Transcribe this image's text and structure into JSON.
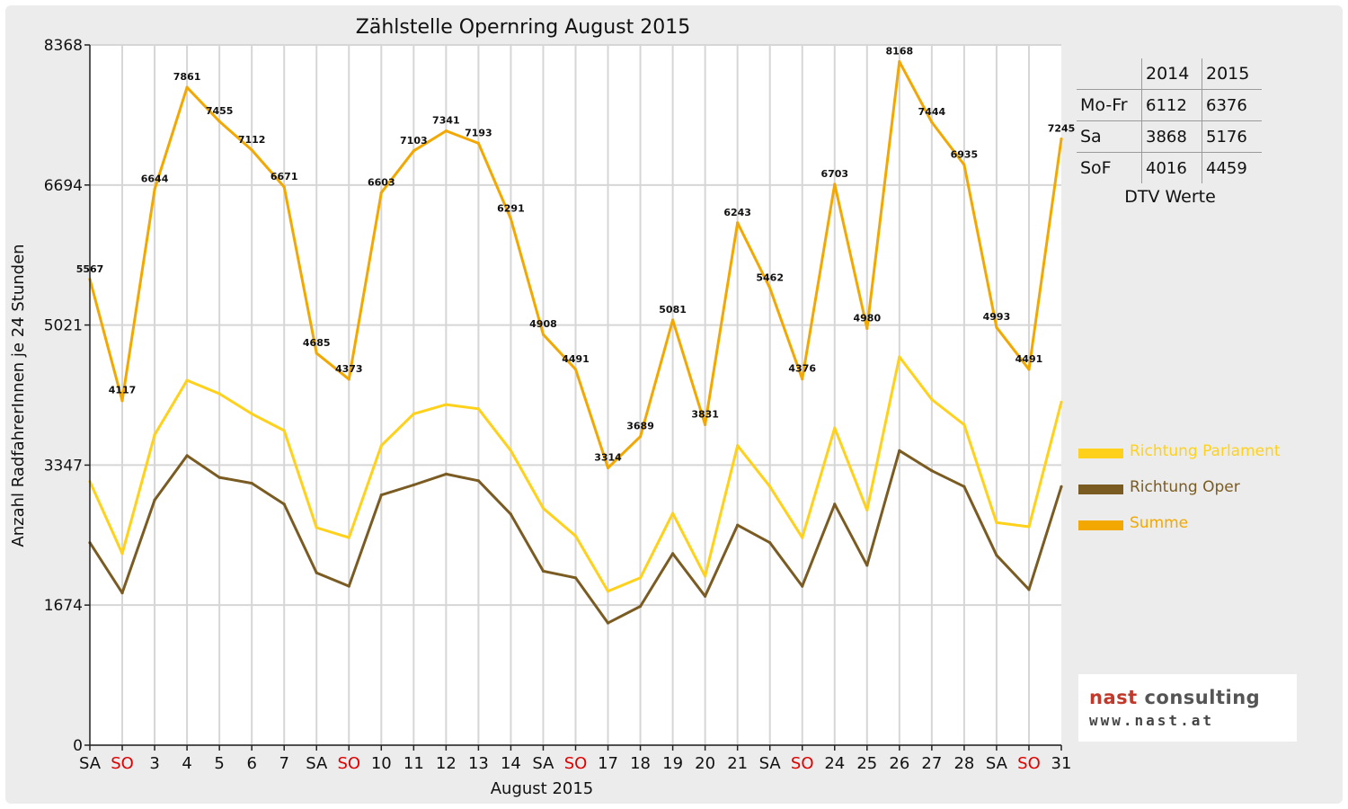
{
  "chart_data": {
    "type": "line",
    "title": "Zählstelle Opernring August 2015",
    "xlabel": "August 2015",
    "ylabel": "Anzahl RadfahrerInnen je 24 Stunden",
    "ylim": [
      0,
      8368
    ],
    "yticks": [
      "0",
      "1674",
      "3347",
      "5021",
      "6694",
      "8368"
    ],
    "grid": true,
    "legend_position": "right",
    "categories": [
      "SA",
      "SO",
      "3",
      "4",
      "5",
      "6",
      "7",
      "SA",
      "SO",
      "10",
      "11",
      "12",
      "13",
      "14",
      "SA",
      "SO",
      "17",
      "18",
      "19",
      "20",
      "21",
      "SA",
      "SO",
      "24",
      "25",
      "26",
      "27",
      "28",
      "SA",
      "SO",
      "31"
    ],
    "weekend_label_color": "#e00000",
    "series": [
      {
        "name": "Richtung Parlament",
        "color": "#ffd11a",
        "values": [
          3150,
          2290,
          3710,
          4360,
          4200,
          3960,
          3760,
          2600,
          2480,
          3580,
          3960,
          4070,
          4020,
          3520,
          2830,
          2500,
          1840,
          2000,
          2770,
          2020,
          3580,
          3090,
          2480,
          3790,
          2810,
          4640,
          4130,
          3830,
          2660,
          2610,
          4100
        ]
      },
      {
        "name": "Richtung Oper",
        "color": "#7a5c23",
        "values": [
          2420,
          1820,
          2930,
          3460,
          3200,
          3130,
          2880,
          2060,
          1900,
          2990,
          3110,
          3240,
          3160,
          2760,
          2080,
          2000,
          1460,
          1660,
          2290,
          1780,
          2630,
          2420,
          1900,
          2880,
          2150,
          3520,
          3280,
          3090,
          2270,
          1860,
          3090
        ]
      },
      {
        "name": "Summe",
        "color": "#f2a800",
        "values": [
          5567,
          4117,
          6644,
          7861,
          7455,
          7112,
          6671,
          4685,
          4373,
          6603,
          7103,
          7341,
          7193,
          6291,
          4908,
          4491,
          3314,
          3689,
          5081,
          3831,
          6243,
          5462,
          4376,
          6703,
          4980,
          8168,
          7444,
          6935,
          4993,
          4491,
          7245
        ],
        "data_labels": [
          "5567",
          "4117",
          "6644",
          "7861",
          "7455",
          "7112",
          "6671",
          "4685",
          "4373",
          "6603",
          "7103",
          "7341",
          "7193",
          "6291",
          "4908",
          "4491",
          "3314",
          "3689",
          "5081",
          "3831",
          "6243",
          "5462",
          "4376",
          "6703",
          "4980",
          "8168",
          "7444",
          "6935",
          "4993",
          "4491",
          "7245"
        ]
      }
    ]
  },
  "dtv_table": {
    "caption": "DTV Werte",
    "headers": [
      "",
      "2014",
      "2015"
    ],
    "rows": [
      {
        "label": "Mo-Fr",
        "v2014": "6112",
        "v2015": "6376"
      },
      {
        "label": "Sa",
        "v2014": "3868",
        "v2015": "5176"
      },
      {
        "label": "SoF",
        "v2014": "4016",
        "v2015": "4459"
      }
    ]
  },
  "logo": {
    "name_part1": "nast",
    "name_part2": " consulting",
    "url": "www.nast.at"
  }
}
